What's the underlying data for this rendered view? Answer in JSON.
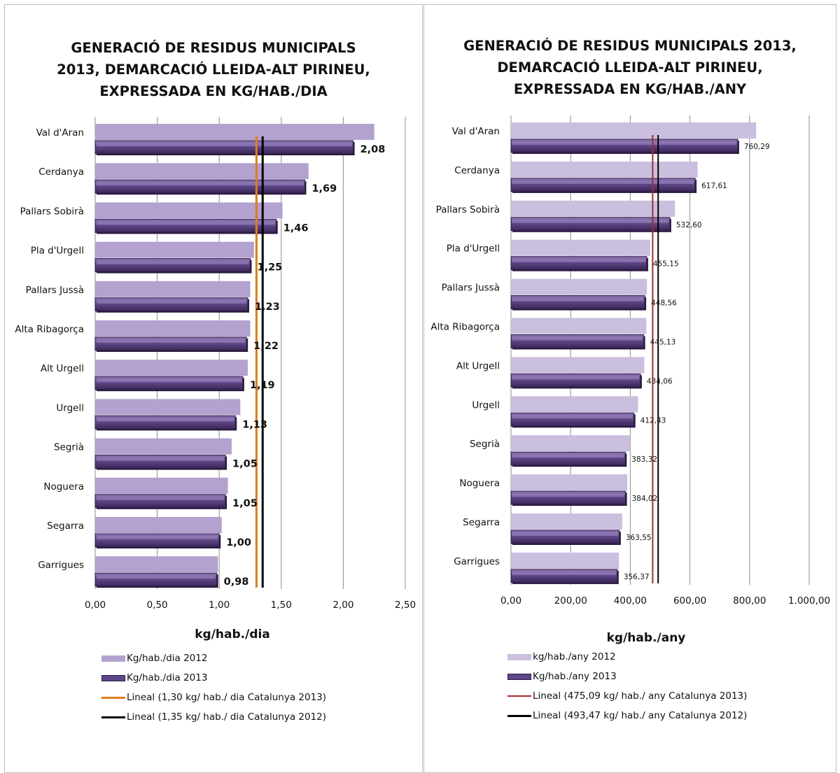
{
  "charts": [
    {
      "title_lines": [
        "GENERACIÓ DE RESIDUS MUNICIPALS",
        "2013, DEMARCACIÓ LLEIDA-ALT PIRINEU,",
        "EXPRESSADA EN KG/HAB./DIA"
      ],
      "xlabel": "kg/hab./dia",
      "x_ticks": [
        "0,00",
        "0,50",
        "1,00",
        "1,50",
        "2,00",
        "2,50"
      ],
      "legend": [
        {
          "label": "Kg/hab./dia 2012",
          "kind": "bar-light"
        },
        {
          "label": "Kg/hab./dia 2013",
          "kind": "bar-dark"
        },
        {
          "label": "Lineal (1,30 kg/ hab./ dia Catalunya 2013)",
          "kind": "line-2013"
        },
        {
          "label": "Lineal (1,35 kg/ hab./ dia Catalunya 2012)",
          "kind": "line-2012"
        }
      ]
    },
    {
      "title_lines": [
        "GENERACIÓ DE RESIDUS MUNICIPALS 2013,",
        "DEMARCACIÓ LLEIDA-ALT PIRINEU,",
        "EXPRESSADA EN KG/HAB./ANY"
      ],
      "xlabel": "kg/hab./any",
      "x_ticks": [
        "0,00",
        "200,00",
        "400,00",
        "600,00",
        "800,00",
        "1.000,00"
      ],
      "legend": [
        {
          "label": "kg/hab./any 2012",
          "kind": "bar-light"
        },
        {
          "label": "Kg/hab./any 2013",
          "kind": "bar-dark"
        },
        {
          "label": "Lineal (475,09 kg/ hab./ any Catalunya 2013)",
          "kind": "line-2013"
        },
        {
          "label": "Lineal (493,47 kg/ hab./ any Catalunya 2012)",
          "kind": "line-2012"
        }
      ]
    }
  ],
  "chart_data": [
    {
      "type": "bar",
      "orientation": "horizontal",
      "categories": [
        "Val d'Aran",
        "Cerdanya",
        "Pallars Sobirà",
        "Pla d'Urgell",
        "Pallars Jussà",
        "Alta Ribagorça",
        "Alt Urgell",
        "Urgell",
        "Segrià",
        "Noguera",
        "Segarra",
        "Garrigues"
      ],
      "series": [
        {
          "name": "Kg/hab./dia 2012",
          "values": [
            2.25,
            1.72,
            1.51,
            1.28,
            1.25,
            1.25,
            1.23,
            1.17,
            1.1,
            1.07,
            1.02,
            0.99
          ]
        },
        {
          "name": "Kg/hab./dia 2013",
          "values": [
            2.08,
            1.69,
            1.46,
            1.25,
            1.23,
            1.22,
            1.19,
            1.13,
            1.05,
            1.05,
            1.0,
            0.98
          ],
          "data_labels": [
            "2,08",
            "1,69",
            "1,46",
            "1,25",
            "1,23",
            "1,22",
            "1,19",
            "1,13",
            "1,05",
            "1,05",
            "1,00",
            "0,98"
          ]
        }
      ],
      "reference_lines": [
        {
          "name": "Lineal (1,30 kg/ hab./ dia Catalunya 2013)",
          "value": 1.3,
          "color": "#e07b1a"
        },
        {
          "name": "Lineal (1,35 kg/ hab./ dia Catalunya 2012)",
          "value": 1.35,
          "color": "#000000"
        }
      ],
      "xlim": [
        0,
        2.5
      ],
      "x_tick_values": [
        0,
        0.5,
        1,
        1.5,
        2,
        2.5
      ],
      "xlabel": "kg/hab./dia",
      "grid": "vertical",
      "legend_position": "bottom"
    },
    {
      "type": "bar",
      "orientation": "horizontal",
      "categories": [
        "Val d'Aran",
        "Cerdanya",
        "Pallars Sobirà",
        "Pla d'Urgell",
        "Pallars Jussà",
        "Alta Ribagorça",
        "Alt Urgell",
        "Urgell",
        "Segrià",
        "Noguera",
        "Segarra",
        "Garrigues"
      ],
      "series": [
        {
          "name": "kg/hab./any 2012",
          "values": [
            822,
            626,
            550,
            467,
            456,
            454,
            447,
            426,
            400,
            390,
            373,
            362
          ]
        },
        {
          "name": "Kg/hab./any 2013",
          "values": [
            760.29,
            617.61,
            532.6,
            455.15,
            448.56,
            445.13,
            434.06,
            412.43,
            383.32,
            384.02,
            363.55,
            356.37
          ],
          "data_labels": [
            "760,29",
            "617,61",
            "532,60",
            "455,15",
            "448,56",
            "445,13",
            "434,06",
            "412,43",
            "383,32",
            "384,02",
            "363,55",
            "356,37"
          ]
        }
      ],
      "reference_lines": [
        {
          "name": "Lineal (475,09 kg/ hab./ any Catalunya 2013)",
          "value": 475.09,
          "color": "#a52a2a"
        },
        {
          "name": "Lineal (493,47 kg/ hab./ any Catalunya 2012)",
          "value": 493.47,
          "color": "#000000"
        }
      ],
      "xlim": [
        0,
        1000
      ],
      "x_tick_values": [
        0,
        200,
        400,
        600,
        800,
        1000
      ],
      "xlabel": "kg/hab./any",
      "grid": "vertical",
      "legend_position": "bottom"
    }
  ]
}
